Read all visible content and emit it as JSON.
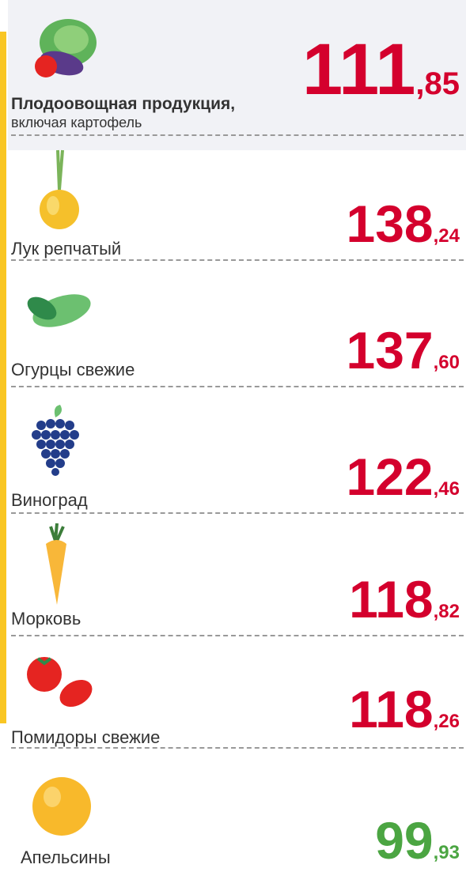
{
  "items": [
    {
      "label": "Плодоовощная продукция,",
      "sublabel": "включая картофель",
      "int": "111",
      "frac": ",85"
    },
    {
      "label": "Лук репчатый",
      "int": "138",
      "frac": ",24"
    },
    {
      "label": "Огурцы свежие",
      "int": "137",
      "frac": ",60"
    },
    {
      "label": "Виноград",
      "int": "122",
      "frac": ",46"
    },
    {
      "label": "Морковь",
      "int": "118",
      "frac": ",82"
    },
    {
      "label": "Помидоры свежие",
      "int": "118",
      "frac": ",26"
    },
    {
      "label": "Апельсины",
      "int": "99",
      "frac": ",93"
    }
  ]
}
